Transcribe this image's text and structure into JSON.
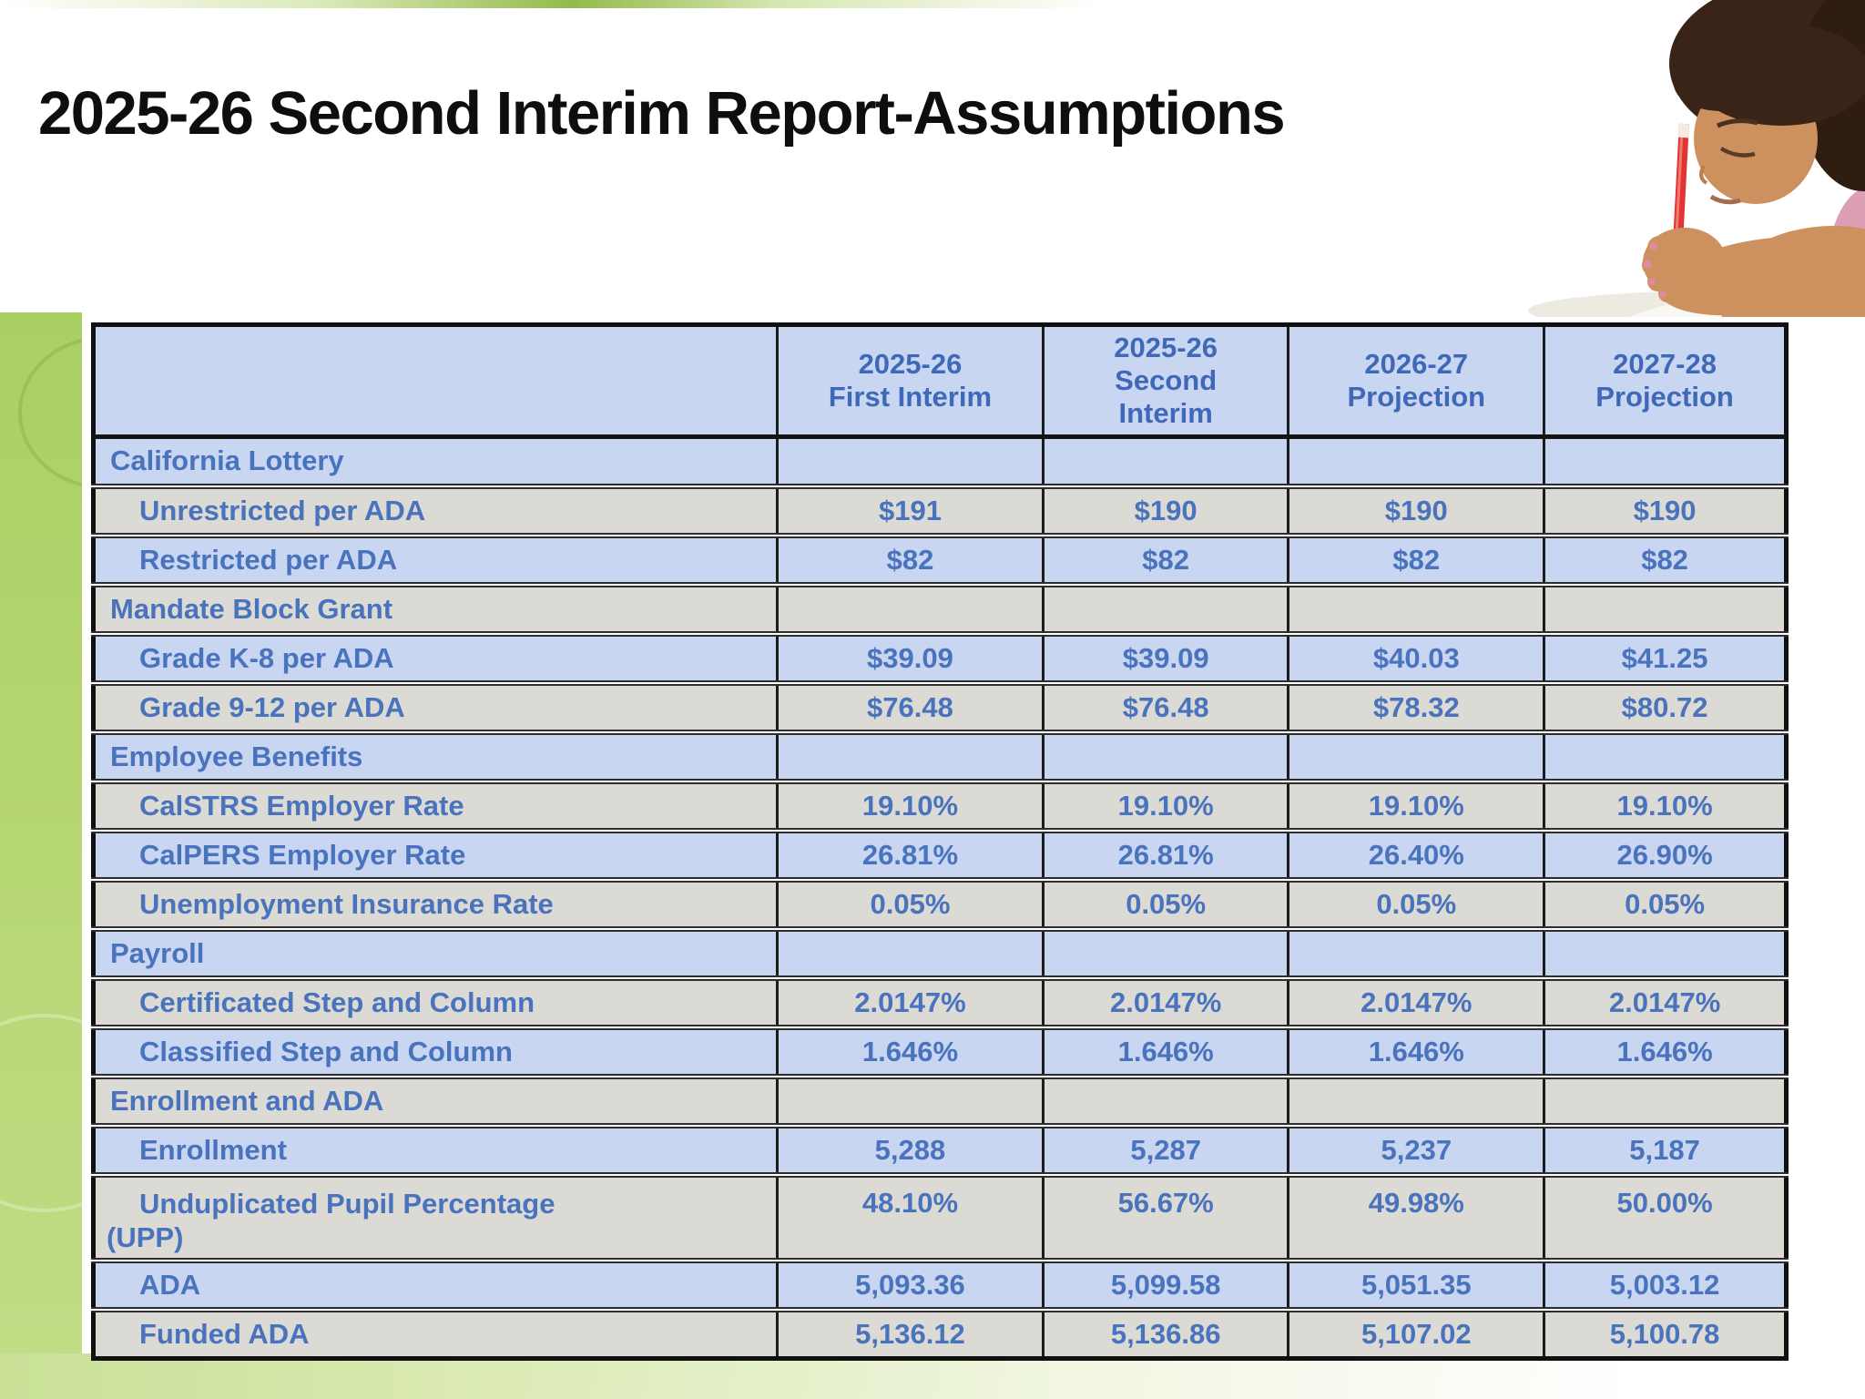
{
  "slide": {
    "title": "2025-26 Second Interim Report-Assumptions"
  },
  "table": {
    "columns": [
      "2025-26\nFirst Interim",
      "2025-26\nSecond\nInterim",
      "2026-27\nProjection",
      "2027-28\nProjection"
    ],
    "rows": [
      {
        "label": "California Lottery",
        "section": true,
        "shade": "blue",
        "values": [
          "",
          "",
          "",
          ""
        ]
      },
      {
        "label": "Unrestricted per ADA",
        "section": false,
        "shade": "gray",
        "values": [
          "$191",
          "$190",
          "$190",
          "$190"
        ]
      },
      {
        "label": "Restricted per ADA",
        "section": false,
        "shade": "blue",
        "values": [
          "$82",
          "$82",
          "$82",
          "$82"
        ]
      },
      {
        "label": "Mandate Block Grant",
        "section": true,
        "shade": "gray",
        "values": [
          "",
          "",
          "",
          ""
        ]
      },
      {
        "label": "Grade K-8 per ADA",
        "section": false,
        "shade": "blue",
        "values": [
          "$39.09",
          "$39.09",
          "$40.03",
          "$41.25"
        ]
      },
      {
        "label": "Grade 9-12 per ADA",
        "section": false,
        "shade": "gray",
        "values": [
          "$76.48",
          "$76.48",
          "$78.32",
          "$80.72"
        ]
      },
      {
        "label": "Employee Benefits",
        "section": true,
        "shade": "blue",
        "values": [
          "",
          "",
          "",
          ""
        ]
      },
      {
        "label": "CalSTRS Employer Rate",
        "section": false,
        "shade": "gray",
        "values": [
          "19.10%",
          "19.10%",
          "19.10%",
          "19.10%"
        ]
      },
      {
        "label": "CalPERS Employer Rate",
        "section": false,
        "shade": "blue",
        "values": [
          "26.81%",
          "26.81%",
          "26.40%",
          "26.90%"
        ]
      },
      {
        "label": "Unemployment Insurance Rate",
        "section": false,
        "shade": "gray",
        "values": [
          "0.05%",
          "0.05%",
          "0.05%",
          "0.05%"
        ]
      },
      {
        "label": "Payroll",
        "section": true,
        "shade": "blue",
        "values": [
          "",
          "",
          "",
          ""
        ]
      },
      {
        "label": "Certificated Step and Column",
        "section": false,
        "shade": "gray",
        "values": [
          "2.0147%",
          "2.0147%",
          "2.0147%",
          "2.0147%"
        ]
      },
      {
        "label": "Classified Step and Column",
        "section": false,
        "shade": "blue",
        "values": [
          "1.646%",
          "1.646%",
          "1.646%",
          "1.646%"
        ]
      },
      {
        "label": "Enrollment and ADA",
        "section": true,
        "shade": "gray",
        "values": [
          "",
          "",
          "",
          ""
        ]
      },
      {
        "label": "Enrollment",
        "section": false,
        "shade": "blue",
        "values": [
          "5,288",
          "5,287",
          "5,237",
          "5,187"
        ]
      },
      {
        "label": "Unduplicated Pupil Percentage\n(UPP)",
        "section": false,
        "shade": "gray",
        "tall": true,
        "values": [
          "48.10%",
          "56.67%",
          "49.98%",
          "50.00%"
        ]
      },
      {
        "label": "ADA",
        "section": false,
        "shade": "blue",
        "values": [
          "5,093.36",
          "5,099.58",
          "5,051.35",
          "5,003.12"
        ]
      },
      {
        "label": "Funded ADA",
        "section": false,
        "shade": "gray",
        "values": [
          "5,136.12",
          "5,136.86",
          "5,107.02",
          "5,100.78"
        ]
      }
    ]
  },
  "photo": {
    "description": "child writing with red pencil in spiral notebook"
  },
  "colors": {
    "row_blue": "#c8d6f1",
    "row_gray": "#dcdad4",
    "table_text_blue": "#4a73bd",
    "header_text_blue": "#3f69b8",
    "table_border": "#1c1c1c",
    "band_green": "#b5d571",
    "title_black": "#0e0e0e",
    "pencil_red": "#e23434"
  }
}
